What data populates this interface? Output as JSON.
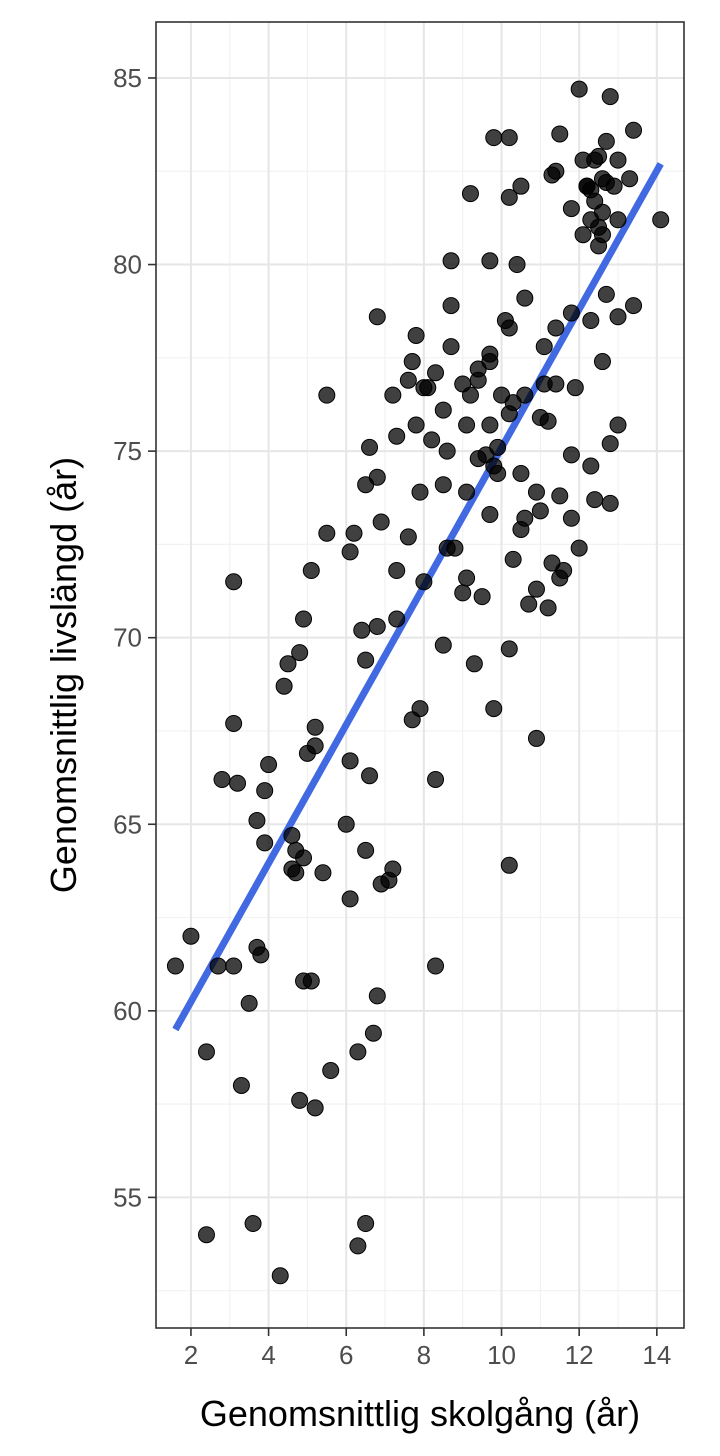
{
  "chart_data": {
    "type": "scatter",
    "xlabel": "Genomsnittlig skolgång (år)",
    "ylabel": "Genomsnittlig livslängd (år)",
    "xlim": [
      1.1,
      14.7
    ],
    "ylim": [
      51.5,
      86.5
    ],
    "x_ticks": [
      2,
      4,
      6,
      8,
      10,
      12,
      14
    ],
    "y_ticks": [
      55,
      60,
      65,
      70,
      75,
      80,
      85
    ],
    "grid": true,
    "point_color": "#000000",
    "point_opacity": 0.75,
    "trend_color": "#4169E1",
    "trend_line": {
      "x": [
        1.6,
        14.1
      ],
      "y": [
        59.5,
        82.7
      ]
    },
    "points": [
      [
        1.6,
        61.2
      ],
      [
        2.0,
        62.0
      ],
      [
        2.4,
        58.9
      ],
      [
        2.4,
        54.0
      ],
      [
        2.7,
        61.2
      ],
      [
        2.8,
        66.2
      ],
      [
        3.1,
        71.5
      ],
      [
        3.1,
        67.7
      ],
      [
        3.1,
        61.2
      ],
      [
        3.2,
        66.1
      ],
      [
        3.3,
        58.0
      ],
      [
        3.5,
        60.2
      ],
      [
        3.6,
        54.3
      ],
      [
        3.7,
        65.1
      ],
      [
        3.7,
        61.7
      ],
      [
        3.8,
        61.5
      ],
      [
        3.9,
        64.5
      ],
      [
        3.9,
        65.9
      ],
      [
        4.0,
        66.6
      ],
      [
        4.3,
        52.9
      ],
      [
        4.4,
        68.7
      ],
      [
        4.5,
        69.3
      ],
      [
        4.6,
        64.7
      ],
      [
        4.6,
        63.8
      ],
      [
        4.7,
        64.3
      ],
      [
        4.7,
        63.7
      ],
      [
        4.8,
        69.6
      ],
      [
        4.8,
        57.6
      ],
      [
        4.9,
        60.8
      ],
      [
        4.9,
        70.5
      ],
      [
        4.9,
        64.1
      ],
      [
        5.0,
        66.9
      ],
      [
        5.1,
        60.8
      ],
      [
        5.1,
        71.8
      ],
      [
        5.2,
        67.1
      ],
      [
        5.2,
        67.6
      ],
      [
        5.2,
        57.4
      ],
      [
        5.4,
        63.7
      ],
      [
        5.5,
        72.8
      ],
      [
        5.5,
        76.5
      ],
      [
        5.6,
        58.4
      ],
      [
        6.0,
        65.0
      ],
      [
        6.1,
        66.7
      ],
      [
        6.1,
        63.0
      ],
      [
        6.1,
        72.3
      ],
      [
        6.2,
        72.8
      ],
      [
        6.3,
        58.9
      ],
      [
        6.3,
        53.7
      ],
      [
        6.4,
        70.2
      ],
      [
        6.5,
        54.3
      ],
      [
        6.5,
        64.3
      ],
      [
        6.5,
        69.4
      ],
      [
        6.5,
        74.1
      ],
      [
        6.6,
        75.1
      ],
      [
        6.6,
        66.3
      ],
      [
        6.7,
        59.4
      ],
      [
        6.8,
        70.3
      ],
      [
        6.8,
        60.4
      ],
      [
        6.8,
        74.3
      ],
      [
        6.8,
        78.6
      ],
      [
        6.9,
        63.4
      ],
      [
        6.9,
        73.1
      ],
      [
        7.1,
        63.5
      ],
      [
        7.2,
        76.5
      ],
      [
        7.2,
        63.8
      ],
      [
        7.3,
        75.4
      ],
      [
        7.3,
        71.8
      ],
      [
        7.3,
        70.5
      ],
      [
        7.6,
        72.7
      ],
      [
        7.6,
        76.9
      ],
      [
        7.7,
        67.8
      ],
      [
        7.7,
        77.4
      ],
      [
        7.8,
        78.1
      ],
      [
        7.8,
        75.7
      ],
      [
        7.9,
        68.1
      ],
      [
        7.9,
        73.9
      ],
      [
        8.0,
        76.7
      ],
      [
        8.0,
        71.5
      ],
      [
        8.1,
        76.7
      ],
      [
        8.2,
        75.3
      ],
      [
        8.3,
        77.1
      ],
      [
        8.3,
        66.2
      ],
      [
        8.3,
        61.2
      ],
      [
        8.5,
        69.8
      ],
      [
        8.5,
        76.1
      ],
      [
        8.5,
        74.1
      ],
      [
        8.6,
        75.0
      ],
      [
        8.6,
        72.4
      ],
      [
        8.7,
        77.8
      ],
      [
        8.7,
        78.9
      ],
      [
        8.7,
        80.1
      ],
      [
        8.8,
        72.4
      ],
      [
        9.0,
        76.8
      ],
      [
        9.0,
        71.2
      ],
      [
        9.1,
        75.7
      ],
      [
        9.1,
        71.6
      ],
      [
        9.1,
        73.9
      ],
      [
        9.2,
        76.5
      ],
      [
        9.2,
        81.9
      ],
      [
        9.3,
        69.3
      ],
      [
        9.4,
        74.8
      ],
      [
        9.4,
        76.9
      ],
      [
        9.4,
        77.2
      ],
      [
        9.5,
        71.1
      ],
      [
        9.6,
        74.9
      ],
      [
        9.7,
        77.4
      ],
      [
        9.7,
        75.7
      ],
      [
        9.7,
        73.3
      ],
      [
        9.7,
        80.1
      ],
      [
        9.7,
        77.6
      ],
      [
        9.8,
        68.1
      ],
      [
        9.8,
        74.6
      ],
      [
        9.8,
        83.4
      ],
      [
        9.9,
        75.1
      ],
      [
        9.9,
        74.4
      ],
      [
        10.0,
        76.5
      ],
      [
        10.1,
        78.5
      ],
      [
        10.2,
        78.3
      ],
      [
        10.2,
        81.8
      ],
      [
        10.2,
        69.7
      ],
      [
        10.2,
        76.0
      ],
      [
        10.2,
        63.9
      ],
      [
        10.2,
        83.4
      ],
      [
        10.3,
        72.1
      ],
      [
        10.3,
        76.3
      ],
      [
        10.4,
        80.0
      ],
      [
        10.5,
        72.9
      ],
      [
        10.5,
        74.4
      ],
      [
        10.5,
        82.1
      ],
      [
        10.6,
        76.5
      ],
      [
        10.6,
        73.2
      ],
      [
        10.6,
        79.1
      ],
      [
        10.7,
        70.9
      ],
      [
        10.9,
        67.3
      ],
      [
        10.9,
        73.9
      ],
      [
        10.9,
        71.3
      ],
      [
        11.0,
        75.9
      ],
      [
        11.0,
        73.4
      ],
      [
        11.1,
        77.8
      ],
      [
        11.1,
        76.8
      ],
      [
        11.2,
        70.8
      ],
      [
        11.2,
        75.8
      ],
      [
        11.3,
        72.0
      ],
      [
        11.3,
        82.4
      ],
      [
        11.4,
        78.3
      ],
      [
        11.4,
        76.8
      ],
      [
        11.4,
        82.5
      ],
      [
        11.5,
        71.6
      ],
      [
        11.5,
        73.8
      ],
      [
        11.5,
        83.5
      ],
      [
        11.6,
        71.8
      ],
      [
        11.8,
        78.7
      ],
      [
        11.8,
        73.2
      ],
      [
        11.8,
        74.9
      ],
      [
        11.8,
        81.5
      ],
      [
        11.9,
        76.7
      ],
      [
        12.0,
        72.4
      ],
      [
        12.0,
        84.7
      ],
      [
        12.1,
        80.8
      ],
      [
        12.1,
        82.8
      ],
      [
        12.2,
        82.1
      ],
      [
        12.2,
        82.1
      ],
      [
        12.3,
        74.6
      ],
      [
        12.3,
        81.2
      ],
      [
        12.3,
        78.5
      ],
      [
        12.3,
        82.0
      ],
      [
        12.4,
        73.7
      ],
      [
        12.4,
        82.8
      ],
      [
        12.4,
        81.7
      ],
      [
        12.5,
        80.5
      ],
      [
        12.5,
        82.9
      ],
      [
        12.5,
        81.0
      ],
      [
        12.6,
        82.3
      ],
      [
        12.6,
        81.4
      ],
      [
        12.6,
        77.4
      ],
      [
        12.6,
        80.8
      ],
      [
        12.7,
        79.2
      ],
      [
        12.7,
        82.2
      ],
      [
        12.7,
        83.3
      ],
      [
        12.8,
        75.2
      ],
      [
        12.8,
        73.6
      ],
      [
        12.8,
        84.5
      ],
      [
        12.9,
        82.1
      ],
      [
        13.0,
        81.2
      ],
      [
        13.0,
        78.6
      ],
      [
        13.0,
        82.8
      ],
      [
        13.0,
        75.7
      ],
      [
        13.3,
        82.3
      ],
      [
        13.4,
        83.6
      ],
      [
        13.4,
        78.9
      ],
      [
        14.1,
        81.2
      ]
    ]
  }
}
